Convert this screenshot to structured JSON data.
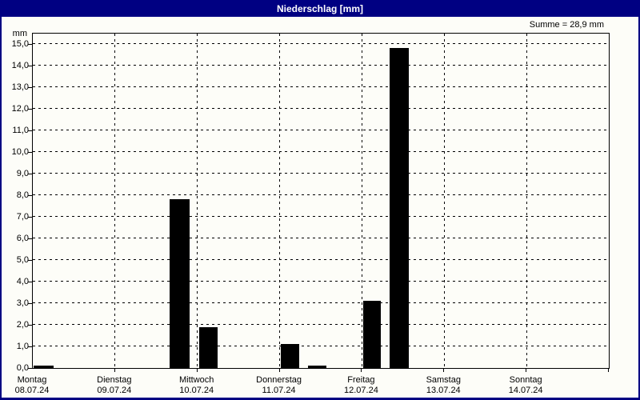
{
  "window": {
    "title": "Niederschlag [mm]"
  },
  "summary": {
    "label": "Summe = 28,9 mm",
    "sum_mm": 28.9
  },
  "colors": {
    "titlebar": "#000082",
    "window_border": "#000082",
    "background": "#fdfdf8",
    "bar": "#000000",
    "grid": "#000000",
    "text": "#000000",
    "title_text": "#ffffff"
  },
  "chart_data": {
    "type": "bar",
    "title": "Niederschlag [mm]",
    "ylabel": "mm",
    "unit": "mm",
    "ylim": [
      0,
      15.5
    ],
    "ytick_step": 1.0,
    "ytick_labels": [
      "0,0",
      "1,0",
      "2,0",
      "3,0",
      "4,0",
      "5,0",
      "6,0",
      "7,0",
      "8,0",
      "9,0",
      "10,0",
      "11,0",
      "12,0",
      "13,0",
      "14,0",
      "15,0"
    ],
    "grid": "dashed-horizontal-per-mm-and-vertical-per-day",
    "legend": "none",
    "sum_label": "Summe = 28,9 mm",
    "sum_mm": 28.9,
    "days": [
      {
        "weekday": "Montag",
        "date": "08.07.24"
      },
      {
        "weekday": "Dienstag",
        "date": "09.07.24"
      },
      {
        "weekday": "Mittwoch",
        "date": "10.07.24"
      },
      {
        "weekday": "Donnerstag",
        "date": "11.07.24"
      },
      {
        "weekday": "Freitag",
        "date": "12.07.24"
      },
      {
        "weekday": "Samstag",
        "date": "13.07.24"
      },
      {
        "weekday": "Sonntag",
        "date": "14.07.24"
      }
    ],
    "bars": [
      {
        "day": "Montag 08.07.24",
        "value_mm": 0.1,
        "pos_days": 0.01,
        "width_days": 0.24
      },
      {
        "day": "Dienstag 09.07.24",
        "value_mm": 7.8,
        "pos_days": 1.66,
        "width_days": 0.25
      },
      {
        "day": "Mittwoch 10.07.24",
        "value_mm": 1.9,
        "pos_days": 2.02,
        "width_days": 0.23
      },
      {
        "day": "Donnerstag 11.07.24",
        "value_mm": 1.1,
        "pos_days": 3.01,
        "width_days": 0.23
      },
      {
        "day": "Donnerstag 11.07.24",
        "value_mm": 0.1,
        "pos_days": 3.34,
        "width_days": 0.23
      },
      {
        "day": "Freitag 12.07.24",
        "value_mm": 3.1,
        "pos_days": 4.02,
        "width_days": 0.21
      },
      {
        "day": "Freitag 12.07.24",
        "value_mm": 14.8,
        "pos_days": 4.34,
        "width_days": 0.23
      }
    ]
  }
}
